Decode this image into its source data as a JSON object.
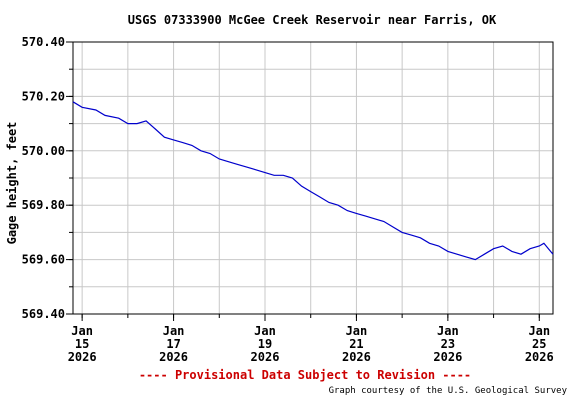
{
  "chart_data": {
    "type": "line",
    "title": "USGS 07333900 McGee Creek Reservoir near Farris, OK",
    "ylabel": "Gage height, feet",
    "xlabel": "",
    "y_ticks": [
      "570.40",
      "570.20",
      "570.00",
      "569.80",
      "569.60",
      "569.40"
    ],
    "y_tick_values": [
      570.4,
      570.2,
      570.0,
      569.8,
      569.6,
      569.4
    ],
    "ylim": [
      569.4,
      570.4
    ],
    "xlim_days": [
      14.8,
      25.3
    ],
    "x_ticks": [
      {
        "day": 15,
        "month": "Jan",
        "date": "15",
        "year": "2026"
      },
      {
        "day": 17,
        "month": "Jan",
        "date": "17",
        "year": "2026"
      },
      {
        "day": 19,
        "month": "Jan",
        "date": "19",
        "year": "2026"
      },
      {
        "day": 21,
        "month": "Jan",
        "date": "21",
        "year": "2026"
      },
      {
        "day": 23,
        "month": "Jan",
        "date": "23",
        "year": "2026"
      },
      {
        "day": 25,
        "month": "Jan",
        "date": "25",
        "year": "2026"
      }
    ],
    "grid": true,
    "series": [
      {
        "name": "",
        "color": "#0000cc",
        "points": [
          [
            14.8,
            570.18
          ],
          [
            15.0,
            570.16
          ],
          [
            15.3,
            570.15
          ],
          [
            15.5,
            570.13
          ],
          [
            15.8,
            570.12
          ],
          [
            16.0,
            570.1
          ],
          [
            16.2,
            570.1
          ],
          [
            16.4,
            570.11
          ],
          [
            16.6,
            570.08
          ],
          [
            16.8,
            570.05
          ],
          [
            17.0,
            570.04
          ],
          [
            17.2,
            570.03
          ],
          [
            17.4,
            570.02
          ],
          [
            17.6,
            570.0
          ],
          [
            17.8,
            569.99
          ],
          [
            18.0,
            569.97
          ],
          [
            18.2,
            569.96
          ],
          [
            18.4,
            569.95
          ],
          [
            18.6,
            569.94
          ],
          [
            18.8,
            569.93
          ],
          [
            19.0,
            569.92
          ],
          [
            19.2,
            569.91
          ],
          [
            19.4,
            569.91
          ],
          [
            19.6,
            569.9
          ],
          [
            19.8,
            569.87
          ],
          [
            20.0,
            569.85
          ],
          [
            20.2,
            569.83
          ],
          [
            20.4,
            569.81
          ],
          [
            20.6,
            569.8
          ],
          [
            20.8,
            569.78
          ],
          [
            21.0,
            569.77
          ],
          [
            21.2,
            569.76
          ],
          [
            21.4,
            569.75
          ],
          [
            21.6,
            569.74
          ],
          [
            21.8,
            569.72
          ],
          [
            22.0,
            569.7
          ],
          [
            22.2,
            569.69
          ],
          [
            22.4,
            569.68
          ],
          [
            22.6,
            569.66
          ],
          [
            22.8,
            569.65
          ],
          [
            23.0,
            569.63
          ],
          [
            23.2,
            569.62
          ],
          [
            23.4,
            569.61
          ],
          [
            23.6,
            569.6
          ],
          [
            23.8,
            569.62
          ],
          [
            24.0,
            569.64
          ],
          [
            24.2,
            569.65
          ],
          [
            24.4,
            569.63
          ],
          [
            24.6,
            569.62
          ],
          [
            24.8,
            569.64
          ],
          [
            25.0,
            569.65
          ],
          [
            25.1,
            569.66
          ],
          [
            25.2,
            569.64
          ],
          [
            25.3,
            569.62
          ]
        ]
      }
    ],
    "notice": "---- Provisional Data Subject to Revision ----",
    "credit": "Graph courtesy of the U.S. Geological Survey"
  }
}
